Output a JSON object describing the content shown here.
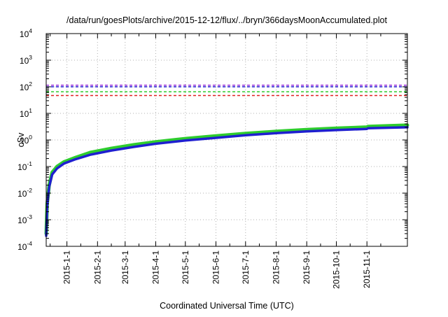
{
  "chart_data": {
    "type": "line",
    "title": "/data/run/goesPlots/archive/2015-12-12/flux/../bryn/366daysMoonAccumulated.plot",
    "xlabel": "Coordinated Universal Time (UTC)",
    "ylabel": "cSv",
    "y_scale": "log",
    "ylim": [
      0.0001,
      10000
    ],
    "xlim": [
      "2014-12-11",
      "2015-12-12"
    ],
    "grid": true,
    "legend": "none",
    "y_ticks": [
      {
        "base": "10",
        "exp": "-4",
        "value": 0.0001
      },
      {
        "base": "10",
        "exp": "-3",
        "value": 0.001
      },
      {
        "base": "10",
        "exp": "-2",
        "value": 0.01
      },
      {
        "base": "10",
        "exp": "-1",
        "value": 0.1
      },
      {
        "base": "10",
        "exp": "0",
        "value": 1
      },
      {
        "base": "10",
        "exp": "1",
        "value": 10
      },
      {
        "base": "10",
        "exp": "2",
        "value": 100
      },
      {
        "base": "10",
        "exp": "3",
        "value": 1000
      },
      {
        "base": "10",
        "exp": "4",
        "value": 10000
      }
    ],
    "x_ticks": [
      {
        "label": "2015-1-1",
        "date": "2015-01-01"
      },
      {
        "label": "2015-2-1",
        "date": "2015-02-01"
      },
      {
        "label": "2015-3-1",
        "date": "2015-03-01"
      },
      {
        "label": "2015-4-1",
        "date": "2015-04-01"
      },
      {
        "label": "2015-5-1",
        "date": "2015-05-01"
      },
      {
        "label": "2015-6-1",
        "date": "2015-06-01"
      },
      {
        "label": "2015-7-1",
        "date": "2015-07-01"
      },
      {
        "label": "2015-8-1",
        "date": "2015-08-01"
      },
      {
        "label": "2015-9-1",
        "date": "2015-09-01"
      },
      {
        "label": "2015-10-1",
        "date": "2015-10-01"
      },
      {
        "label": "2015-11-1",
        "date": "2015-11-01"
      }
    ],
    "reference_lines": [
      {
        "y": 115,
        "color": "#9b30d9",
        "style": "dashed"
      },
      {
        "y": 100,
        "color": "#1f1fd0",
        "style": "dashed"
      },
      {
        "y": 65,
        "color": "#2ecc2e",
        "style": "dashed"
      },
      {
        "y": 47,
        "color": "#e02020",
        "style": "dashed"
      }
    ],
    "series": [
      {
        "color": "#2ecc2e",
        "points": [
          [
            "2014-12-11",
            0.0003
          ],
          [
            "2014-12-12",
            0.004
          ],
          [
            "2014-12-14",
            0.02
          ],
          [
            "2014-12-17",
            0.06
          ],
          [
            "2014-12-22",
            0.1
          ],
          [
            "2014-12-29",
            0.15
          ],
          [
            "2015-01-10",
            0.22
          ],
          [
            "2015-01-25",
            0.34
          ],
          [
            "2015-02-15",
            0.48
          ],
          [
            "2015-03-10",
            0.66
          ],
          [
            "2015-04-01",
            0.85
          ],
          [
            "2015-05-01",
            1.12
          ],
          [
            "2015-06-01",
            1.42
          ],
          [
            "2015-07-01",
            1.75
          ],
          [
            "2015-08-01",
            2.1
          ],
          [
            "2015-09-01",
            2.45
          ],
          [
            "2015-10-01",
            2.75
          ],
          [
            "2015-11-01",
            3.05
          ],
          [
            "2015-11-02",
            3.2
          ],
          [
            "2015-12-12",
            3.6
          ]
        ]
      },
      {
        "color": "#1f1fd0",
        "points": [
          [
            "2014-12-11",
            0.00025
          ],
          [
            "2014-12-12",
            0.0033
          ],
          [
            "2014-12-14",
            0.017
          ],
          [
            "2014-12-17",
            0.05
          ],
          [
            "2014-12-22",
            0.085
          ],
          [
            "2014-12-29",
            0.13
          ],
          [
            "2015-01-10",
            0.19
          ],
          [
            "2015-01-25",
            0.28
          ],
          [
            "2015-02-15",
            0.4
          ],
          [
            "2015-03-10",
            0.55
          ],
          [
            "2015-04-01",
            0.72
          ],
          [
            "2015-05-01",
            0.95
          ],
          [
            "2015-06-01",
            1.2
          ],
          [
            "2015-07-01",
            1.5
          ],
          [
            "2015-08-01",
            1.8
          ],
          [
            "2015-09-01",
            2.1
          ],
          [
            "2015-10-01",
            2.35
          ],
          [
            "2015-11-01",
            2.6
          ],
          [
            "2015-11-02",
            2.75
          ],
          [
            "2015-12-12",
            3.0
          ]
        ]
      }
    ]
  }
}
